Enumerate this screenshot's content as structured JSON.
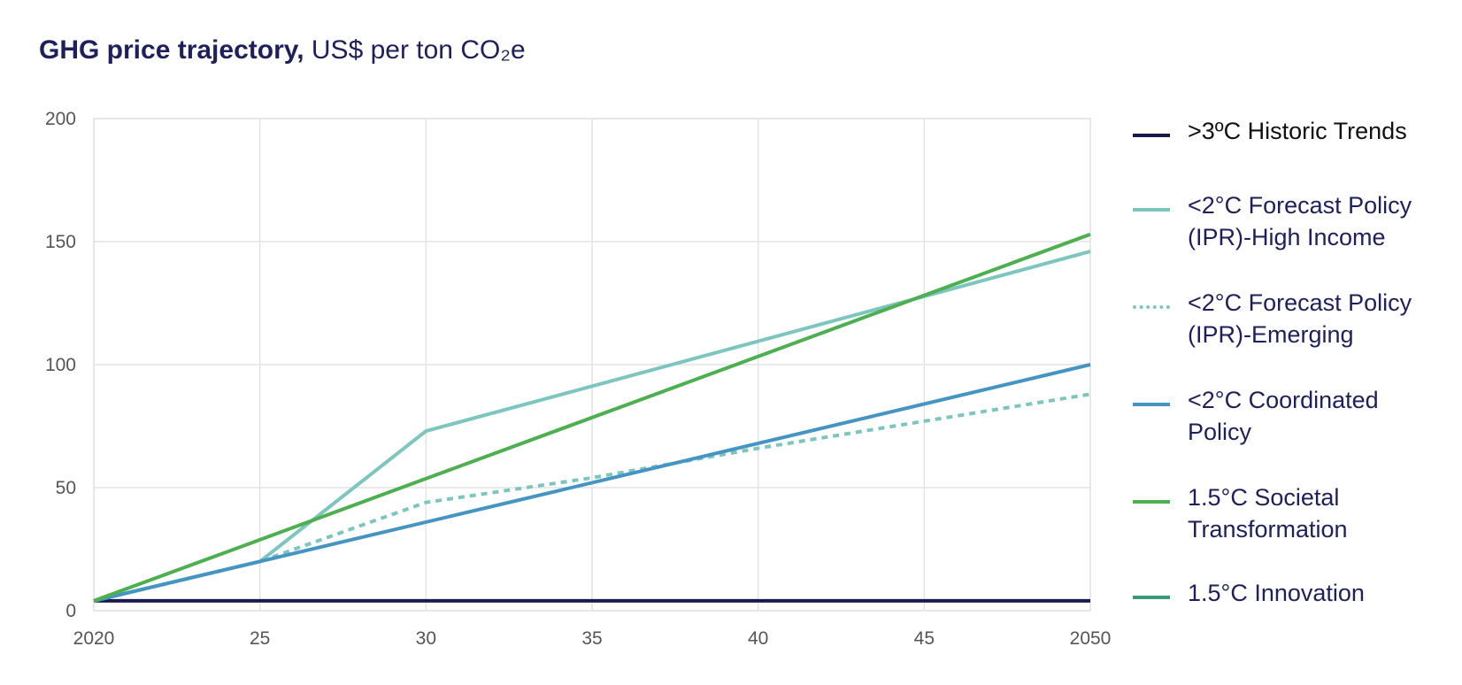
{
  "header": {
    "title_bold": "GHG price trajectory,",
    "title_rest": "US$ per ton CO₂e"
  },
  "chart_data": {
    "type": "line",
    "title": "GHG price trajectory, US$ per ton CO₂e",
    "xlabel": "",
    "ylabel": "",
    "xlim": [
      2020,
      2050
    ],
    "ylim": [
      0,
      200
    ],
    "grid": true,
    "legend_position": "right",
    "x_ticks": [
      2020,
      2025,
      2030,
      2035,
      2040,
      2045,
      2050
    ],
    "x_tick_labels": [
      "2020",
      "25",
      "30",
      "35",
      "40",
      "45",
      "2050"
    ],
    "y_ticks": [
      0,
      50,
      100,
      150,
      200
    ],
    "y_tick_labels": [
      "0",
      "50",
      "100",
      "150",
      "200"
    ],
    "series": [
      {
        "name": ">3ºC Historic Trends",
        "color": "#1b1a4f",
        "dash": "solid",
        "x": [
          2020,
          2050
        ],
        "y": [
          4,
          4
        ]
      },
      {
        "name": "<2°C Forecast Policy (IPR)-High Income",
        "color": "#7cc6bf",
        "dash": "solid",
        "x": [
          2020,
          2025,
          2030,
          2050
        ],
        "y": [
          4,
          20,
          73,
          146
        ]
      },
      {
        "name": "<2°C Forecast Policy (IPR)-Emerging",
        "color": "#7cc6bf",
        "dash": "dotted",
        "x": [
          2020,
          2025,
          2030,
          2035,
          2040,
          2045,
          2050
        ],
        "y": [
          4,
          20,
          44,
          54,
          66,
          77,
          88
        ]
      },
      {
        "name": "<2°C Coordinated Policy",
        "color": "#4494c4",
        "dash": "solid",
        "x": [
          2020,
          2025,
          2050
        ],
        "y": [
          4,
          20,
          100
        ]
      },
      {
        "name": "1.5°C Societal Transformation",
        "color": "#4caf50",
        "dash": "solid",
        "x": [
          2020,
          2050
        ],
        "y": [
          4,
          153
        ]
      },
      {
        "name": "1.5°C Innovation",
        "color": "#3a9a7a",
        "dash": "solid",
        "x": [],
        "y": []
      }
    ]
  }
}
